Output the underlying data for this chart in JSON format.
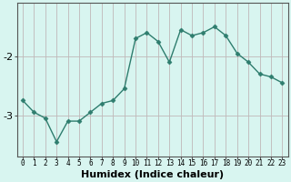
{
  "x": [
    0,
    1,
    2,
    3,
    4,
    5,
    6,
    7,
    8,
    9,
    10,
    11,
    12,
    13,
    14,
    15,
    16,
    17,
    18,
    19,
    20,
    21,
    22,
    23
  ],
  "y": [
    -2.75,
    -2.95,
    -3.05,
    -3.45,
    -3.1,
    -3.1,
    -2.95,
    -2.8,
    -2.75,
    -2.55,
    -1.7,
    -1.6,
    -1.75,
    -2.1,
    -1.55,
    -1.65,
    -1.6,
    -1.5,
    -1.65,
    -1.95,
    -2.1,
    -2.3,
    -2.35,
    -2.45
  ],
  "line_color": "#2e7d6e",
  "marker": "D",
  "marker_size": 2.5,
  "line_width": 1.0,
  "xlabel": "Humidex (Indice chaleur)",
  "xlabel_fontsize": 8,
  "yticks": [
    -3,
    -2
  ],
  "ylim": [
    -3.7,
    -1.1
  ],
  "xlim": [
    -0.5,
    23.5
  ],
  "xticks": [
    0,
    1,
    2,
    3,
    4,
    5,
    6,
    7,
    8,
    9,
    10,
    11,
    12,
    13,
    14,
    15,
    16,
    17,
    18,
    19,
    20,
    21,
    22,
    23
  ],
  "xtick_fontsize": 5.5,
  "ytick_fontsize": 8,
  "grid_color": "#c0b8b8",
  "background_color": "#d8f5f0",
  "spine_color": "#555555"
}
